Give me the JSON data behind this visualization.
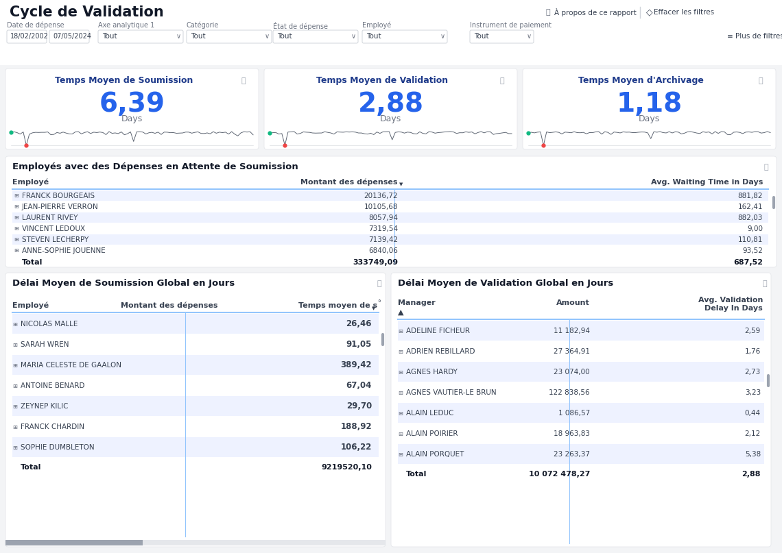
{
  "title": "Cycle de Validation",
  "bg_color": "#f3f4f6",
  "filter_labels": [
    "Date de dépense",
    "Axe analytique 1",
    "Catégorie",
    "État de dépense",
    "Employé",
    "Instrument de paiement"
  ],
  "kpi_titles": [
    "Temps Moyen de Soumission",
    "Temps Moyen de Validation",
    "Temps Moyen d'Archivage"
  ],
  "kpi_values": [
    "6,39",
    "2,88",
    "1,18"
  ],
  "kpi_unit": "Days",
  "section1_title": "Employés avec des Dépenses en Attente de Soumission",
  "table1_headers": [
    "Employé",
    "Montant des dépenses",
    "Avg. Waiting Time in Days"
  ],
  "table1_rows": [
    [
      "FRANCK BOURGEAIS",
      "20136,72",
      "881,82"
    ],
    [
      "JEAN-PIERRE VERRON",
      "10105,68",
      "162,41"
    ],
    [
      "LAURENT RIVEY",
      "8057,94",
      "882,03"
    ],
    [
      "VINCENT LEDOUX",
      "7319,54",
      "9,00"
    ],
    [
      "STEVEN LECHERPY",
      "7139,42",
      "110,81"
    ],
    [
      "ANNE-SOPHIE JOUENNE",
      "6840,06",
      "93,52"
    ]
  ],
  "table1_total": [
    "Total",
    "333749,09",
    "687,52"
  ],
  "section2_title": "Délai Moyen de Soumission Global en Jours",
  "table2_rows": [
    [
      "NICOLAS MALLE",
      "26,46"
    ],
    [
      "SARAH WREN",
      "91,05"
    ],
    [
      "MARIA CELESTE DE GAALON",
      "389,42"
    ],
    [
      "ANTOINE BENARD",
      "67,04"
    ],
    [
      "ZEYNEP KILIC",
      "29,70"
    ],
    [
      "FRANCK CHARDIN",
      "188,92"
    ],
    [
      "SOPHIE DUMBLETON",
      "106,22"
    ]
  ],
  "table2_total": [
    "Total",
    "9219520,10"
  ],
  "section3_title": "Délai Moyen de Validation Global en Jours",
  "table3_rows": [
    [
      "ADELINE FICHEUR",
      "11 182,94",
      "2,59"
    ],
    [
      "ADRIEN REBILLARD",
      "27 364,91",
      "1,76"
    ],
    [
      "AGNES HARDY",
      "23 074,00",
      "2,73"
    ],
    [
      "AGNES VAUTIER-LE BRUN",
      "122 838,56",
      "3,23"
    ],
    [
      "ALAIN LEDUC",
      "1 086,57",
      "0,44"
    ],
    [
      "ALAIN POIRIER",
      "18 963,83",
      "2,12"
    ],
    [
      "ALAIN PORQUET",
      "23 263,37",
      "5,38"
    ]
  ],
  "table3_total": [
    "Total",
    "10 072 478,27",
    "2,88"
  ],
  "blue_color": "#2563eb",
  "dark_blue": "#1e3a8a",
  "text_color": "#374151",
  "light_text": "#6b7280",
  "border_color": "#d1d5db",
  "row_alt": "#eef2ff",
  "row_white": "#ffffff",
  "line_blue": "#93c5fd"
}
